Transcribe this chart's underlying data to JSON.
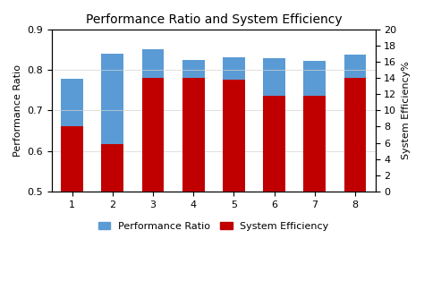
{
  "categories": [
    1,
    2,
    3,
    4,
    5,
    6,
    7,
    8
  ],
  "performance_ratio": [
    0.778,
    0.84,
    0.851,
    0.824,
    0.831,
    0.828,
    0.822,
    0.838
  ],
  "system_efficiency": [
    8.0,
    5.8,
    14.0,
    14.0,
    13.8,
    11.8,
    11.8,
    14.0
  ],
  "bar_color_blue": "#5b9bd5",
  "bar_color_red": "#c00000",
  "title": "Performance Ratio and System Efficiency",
  "ylabel_left": "Performance Ratio",
  "ylabel_right": "System Efficiency%",
  "ylim_left": [
    0.5,
    0.9
  ],
  "ylim_right": [
    0,
    20
  ],
  "yticks_left": [
    0.5,
    0.6,
    0.7,
    0.8,
    0.9
  ],
  "yticks_right": [
    0,
    2,
    4,
    6,
    8,
    10,
    12,
    14,
    16,
    18,
    20
  ],
  "legend_labels": [
    "Performance Ratio",
    "System Efficiency"
  ],
  "background_color": "#ffffff",
  "title_fontsize": 10,
  "label_fontsize": 8,
  "tick_fontsize": 8,
  "bar_width": 0.55
}
